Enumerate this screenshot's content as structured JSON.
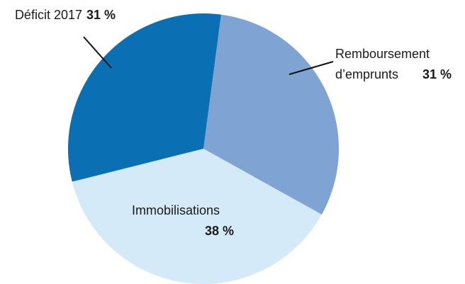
{
  "chart_data": {
    "type": "pie",
    "categories": [
      "Remboursement d’emprunts",
      "Immobilisations",
      "Déficit 2017"
    ],
    "values": [
      31,
      38,
      31
    ],
    "value_labels": [
      "31 %",
      "38 %",
      "31 %"
    ],
    "colors": [
      "#7fa3d3",
      "#d4eaf8",
      "#0b6fb3"
    ]
  }
}
